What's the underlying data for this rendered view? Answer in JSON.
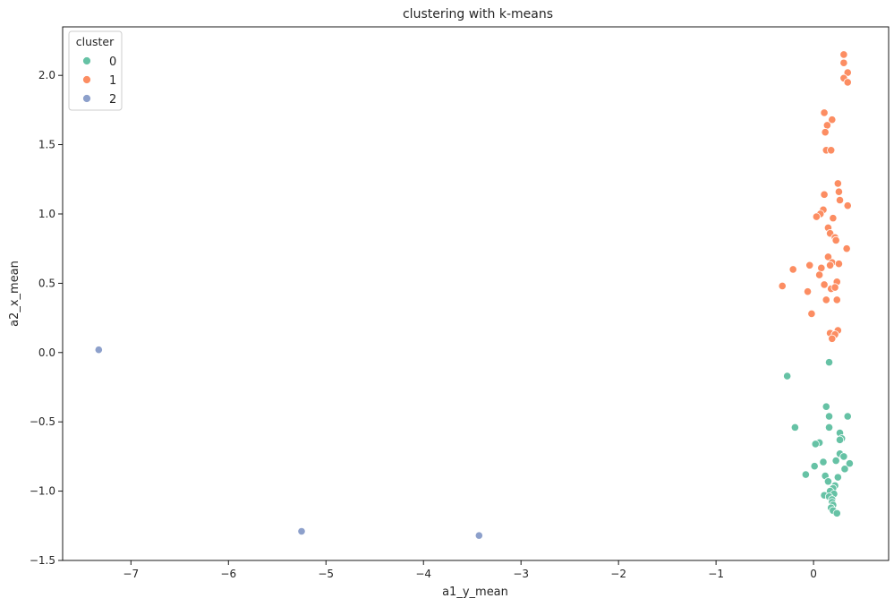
{
  "chart_data": {
    "type": "scatter",
    "title": "clustering with k-means",
    "xlabel": "a1_y_mean",
    "ylabel": "a2_x_mean",
    "xlim": [
      -7.7,
      0.77
    ],
    "ylim": [
      -1.5,
      2.35
    ],
    "xticks": [
      -7,
      -6,
      -5,
      -4,
      -3,
      -2,
      -1,
      0
    ],
    "yticks": [
      -1.5,
      -1.0,
      -0.5,
      0.0,
      0.5,
      1.0,
      1.5,
      2.0
    ],
    "xtick_labels": [
      "−7",
      "−6",
      "−5",
      "−4",
      "−3",
      "−2",
      "−1",
      "0"
    ],
    "ytick_labels": [
      "−1.5",
      "−1.0",
      "−0.5",
      "0.0",
      "0.5",
      "1.0",
      "1.5",
      "2.0"
    ],
    "grid": false,
    "legend": {
      "title": "cluster",
      "placement": "upper-left"
    },
    "series": [
      {
        "name": "0",
        "color": "#66c2a5",
        "points": [
          [
            -0.27,
            -0.17
          ],
          [
            0.16,
            -0.07
          ],
          [
            -0.19,
            -0.54
          ],
          [
            0.13,
            -0.39
          ],
          [
            0.16,
            -0.46
          ],
          [
            0.35,
            -0.46
          ],
          [
            0.16,
            -0.54
          ],
          [
            0.27,
            -0.58
          ],
          [
            0.29,
            -0.62
          ],
          [
            0.27,
            -0.63
          ],
          [
            0.06,
            -0.65
          ],
          [
            0.02,
            -0.66
          ],
          [
            0.27,
            -0.73
          ],
          [
            0.31,
            -0.75
          ],
          [
            0.37,
            -0.8
          ],
          [
            0.1,
            -0.79
          ],
          [
            0.23,
            -0.78
          ],
          [
            0.01,
            -0.82
          ],
          [
            0.32,
            -0.84
          ],
          [
            -0.08,
            -0.88
          ],
          [
            0.12,
            -0.89
          ],
          [
            0.25,
            -0.9
          ],
          [
            0.15,
            -0.93
          ],
          [
            0.22,
            -0.96
          ],
          [
            0.2,
            -0.98
          ],
          [
            0.17,
            -1.0
          ],
          [
            0.21,
            -1.02
          ],
          [
            0.11,
            -1.03
          ],
          [
            0.16,
            -1.04
          ],
          [
            0.19,
            -1.06
          ],
          [
            0.19,
            -1.08
          ],
          [
            0.2,
            -1.1
          ],
          [
            0.18,
            -1.12
          ],
          [
            0.2,
            -1.14
          ],
          [
            0.24,
            -1.16
          ]
        ]
      },
      {
        "name": "1",
        "color": "#fc8d62",
        "points": [
          [
            0.31,
            2.15
          ],
          [
            0.31,
            2.09
          ],
          [
            0.35,
            2.02
          ],
          [
            0.31,
            1.98
          ],
          [
            0.35,
            1.95
          ],
          [
            0.11,
            1.73
          ],
          [
            0.19,
            1.68
          ],
          [
            0.14,
            1.64
          ],
          [
            0.12,
            1.59
          ],
          [
            0.13,
            1.46
          ],
          [
            0.18,
            1.46
          ],
          [
            0.25,
            1.22
          ],
          [
            0.26,
            1.16
          ],
          [
            0.11,
            1.14
          ],
          [
            0.27,
            1.1
          ],
          [
            0.35,
            1.06
          ],
          [
            0.1,
            1.03
          ],
          [
            0.07,
            1.0
          ],
          [
            0.03,
            0.98
          ],
          [
            0.2,
            0.97
          ],
          [
            0.15,
            0.9
          ],
          [
            0.17,
            0.86
          ],
          [
            0.22,
            0.83
          ],
          [
            0.23,
            0.81
          ],
          [
            0.34,
            0.75
          ],
          [
            0.15,
            0.69
          ],
          [
            0.19,
            0.65
          ],
          [
            0.17,
            0.63
          ],
          [
            0.26,
            0.64
          ],
          [
            0.08,
            0.61
          ],
          [
            -0.04,
            0.63
          ],
          [
            -0.21,
            0.6
          ],
          [
            0.06,
            0.56
          ],
          [
            0.24,
            0.51
          ],
          [
            -0.32,
            0.48
          ],
          [
            0.11,
            0.49
          ],
          [
            0.18,
            0.46
          ],
          [
            0.22,
            0.47
          ],
          [
            -0.06,
            0.44
          ],
          [
            0.13,
            0.38
          ],
          [
            0.24,
            0.38
          ],
          [
            -0.02,
            0.28
          ],
          [
            0.25,
            0.16
          ],
          [
            0.17,
            0.14
          ],
          [
            0.22,
            0.13
          ],
          [
            0.19,
            0.1
          ]
        ]
      },
      {
        "name": "2",
        "color": "#8da0cb",
        "points": [
          [
            -7.33,
            0.02
          ],
          [
            -5.25,
            -1.29
          ],
          [
            -3.43,
            -1.32
          ]
        ]
      }
    ]
  }
}
